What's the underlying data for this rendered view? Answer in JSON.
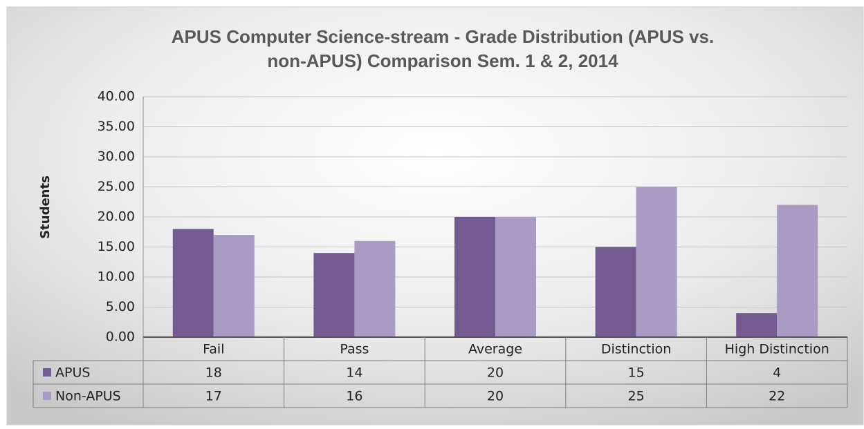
{
  "chart_data": {
    "type": "bar",
    "title": [
      "APUS Computer Science-stream - Grade Distribution (APUS vs.",
      "non-APUS) Comparison Sem. 1 & 2, 2014"
    ],
    "y_label": "Students",
    "categories": [
      "Fail",
      "Pass",
      "Average",
      "Distinction",
      "High Distinction"
    ],
    "series": [
      {
        "name": "APUS",
        "color": "#735b92",
        "values": [
          18,
          14,
          20,
          15,
          4
        ]
      },
      {
        "name": "Non-APUS",
        "color": "#a99bc4",
        "values": [
          17,
          16,
          20,
          25,
          22
        ]
      }
    ],
    "ylim": [
      0,
      40
    ],
    "yticks": [
      {
        "value": 0,
        "label": "0.00"
      },
      {
        "value": 5,
        "label": "5.00"
      },
      {
        "value": 10,
        "label": "10.00"
      },
      {
        "value": 15,
        "label": "15.00"
      },
      {
        "value": 20,
        "label": "20.00"
      },
      {
        "value": 25,
        "label": "25.00"
      },
      {
        "value": 30,
        "label": "30.00"
      },
      {
        "value": 35,
        "label": "35.00"
      },
      {
        "value": 40,
        "label": "40.00"
      }
    ],
    "grid": true,
    "legend": "data-table"
  }
}
